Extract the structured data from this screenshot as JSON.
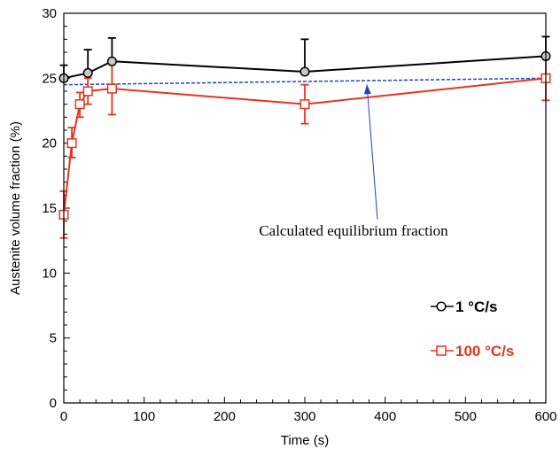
{
  "chart_data": {
    "type": "line",
    "xlabel": "Time (s)",
    "ylabel": "Austenite volume fraction (%)",
    "xlim": [
      0,
      600
    ],
    "ylim": [
      0,
      30
    ],
    "xticks": [
      0,
      100,
      200,
      300,
      400,
      500,
      600
    ],
    "yticks": [
      0,
      5,
      10,
      15,
      20,
      25,
      30
    ],
    "x_minor_step": 20,
    "y_minor_step": 1,
    "grid": false,
    "legend_position": "right",
    "series": [
      {
        "name": "1 °C/s",
        "color": "#000000",
        "marker": "circle",
        "x": [
          0,
          30,
          60,
          300,
          600
        ],
        "y": [
          25.0,
          25.4,
          26.3,
          25.5,
          26.7
        ],
        "error_upper": [
          26.0,
          27.2,
          28.1,
          28.0,
          28.2
        ],
        "error_lower": [
          null,
          null,
          null,
          null,
          null
        ]
      },
      {
        "name": "100 °C/s",
        "color": "#e8331e",
        "marker": "square",
        "x": [
          0,
          10,
          20,
          30,
          60,
          300,
          600
        ],
        "y": [
          14.5,
          20.0,
          23.0,
          24.0,
          24.2,
          23.0,
          25.0
        ],
        "error_upper": [
          16.3,
          21.2,
          23.9,
          25.0,
          26.2,
          24.5,
          26.7
        ],
        "error_lower": [
          12.7,
          18.9,
          22.0,
          23.0,
          22.2,
          21.5,
          23.3
        ]
      },
      {
        "name": "Calculated equilibrium fraction",
        "color": "#1f3fd6",
        "style": "dashed",
        "x": [
          0,
          600
        ],
        "y": [
          24.5,
          25.0
        ]
      }
    ],
    "annotations": [
      {
        "text": "Calculated equilibrium fraction",
        "x": 300,
        "y": 12.9,
        "arrow_to": [
          375,
          24.8
        ]
      }
    ]
  }
}
